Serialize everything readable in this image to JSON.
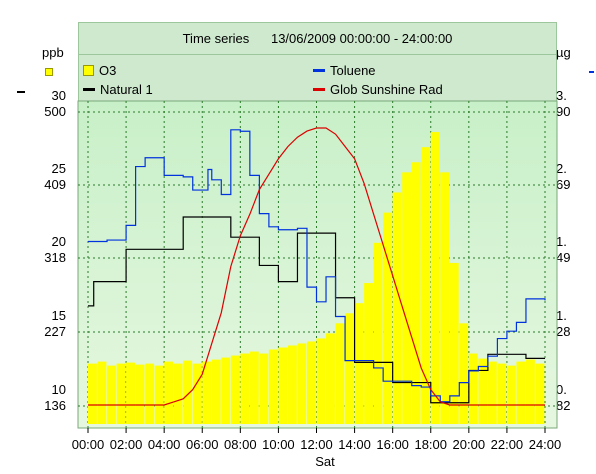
{
  "header": {
    "title": "Time series",
    "date_range": "13/06/2009 00:00:00 - 24:00:00"
  },
  "chart_data": {
    "type": "line",
    "x_axis": {
      "range_hours": [
        0,
        24
      ],
      "ticks": [
        "00:00",
        "02:00",
        "04:00",
        "06:00",
        "08:00",
        "10:00",
        "12:00",
        "14:00",
        "16:00",
        "18:00",
        "20:00",
        "22:00",
        "24:00"
      ],
      "day_label": "Sat"
    },
    "units": {
      "left": "ppb",
      "right": "µg"
    },
    "left_axes": [
      {
        "ticks": [
          "500",
          "409",
          "318",
          "227",
          "136"
        ],
        "values": [
          500,
          409,
          318,
          227,
          136
        ]
      },
      {
        "ticks": [
          "30",
          "25",
          "20",
          "15",
          "10"
        ],
        "values": [
          30,
          25,
          20,
          15,
          10
        ]
      }
    ],
    "right_axes": [
      {
        "ticks": [
          "90",
          "69",
          "49",
          "28",
          "82"
        ]
      },
      {
        "ticks": [
          "3.",
          "2.",
          "1.",
          "1.",
          "0."
        ]
      }
    ],
    "grid": true,
    "legend": [
      {
        "name": "O3",
        "color": "#e8e800",
        "marker": "square"
      },
      {
        "name": "Toluene",
        "color": "#0033dd",
        "marker": "dash"
      },
      {
        "name": "Natural 1",
        "color": "#000000",
        "marker": "dash"
      },
      {
        "name": "Glob Sunshine Rad",
        "color": "#dd0000",
        "marker": "dash"
      }
    ],
    "series": [
      {
        "name": "O3",
        "type": "bar",
        "color": "#ffff00",
        "x": [
          0,
          0.5,
          1,
          1.5,
          2,
          2.5,
          3,
          3.5,
          4,
          4.5,
          5,
          5.5,
          6,
          6.5,
          7,
          7.5,
          8,
          8.5,
          9,
          9.5,
          10,
          10.5,
          11,
          11.5,
          12,
          12.5,
          13,
          13.5,
          14,
          14.5,
          15,
          15.5,
          16,
          16.5,
          17,
          17.5,
          18,
          18.5,
          19,
          19.5,
          20,
          20.5,
          21,
          21.5,
          22,
          22.5,
          23,
          23.5
        ],
        "y": [
          60,
          62,
          58,
          60,
          61,
          59,
          60,
          58,
          62,
          60,
          63,
          60,
          62,
          64,
          66,
          68,
          70,
          72,
          70,
          74,
          76,
          78,
          80,
          82,
          85,
          90,
          100,
          110,
          120,
          140,
          180,
          210,
          230,
          250,
          260,
          275,
          290,
          250,
          160,
          100,
          70,
          65,
          62,
          60,
          58,
          62,
          64,
          60
        ]
      },
      {
        "name": "Toluene",
        "color": "#0033dd",
        "axis": "left-2",
        "x": [
          0,
          1,
          2,
          2.5,
          3,
          3.8,
          4,
          5,
          5.5,
          6,
          6.3,
          6.5,
          7,
          7.5,
          8,
          8.5,
          9,
          9.5,
          10,
          10.5,
          11,
          11.5,
          12,
          12.5,
          13,
          13.5,
          14,
          14.5,
          15,
          15.5,
          16,
          16.5,
          17,
          17.5,
          18,
          18.5,
          19,
          19.5,
          20,
          20.5,
          21,
          21.5,
          22,
          22.5,
          23,
          24
        ],
        "y": [
          20.1,
          20.2,
          21.2,
          25.2,
          25.8,
          25.8,
          24.6,
          24.5,
          23.6,
          23.6,
          25.0,
          24.3,
          23.3,
          27.7,
          27.6,
          24.6,
          22.0,
          21.1,
          20.9,
          20.9,
          21.0,
          17.0,
          16.0,
          17.7,
          15.0,
          12.0,
          12.0,
          12.0,
          11.5,
          10.6,
          10.6,
          10.6,
          10.3,
          10.2,
          9.6,
          9.2,
          9.6,
          10.5,
          11.3,
          11.6,
          12.3,
          13.5,
          14.0,
          14.6,
          16.2,
          16.1
        ]
      },
      {
        "name": "Natural 1",
        "color": "#000000",
        "x": [
          0,
          0.3,
          0.6,
          2,
          4,
          5,
          6,
          7.5,
          8.5,
          9,
          10,
          11,
          12,
          13,
          13.5,
          14,
          15,
          16,
          17,
          18,
          19,
          20,
          21,
          22,
          23,
          24
        ],
        "y": [
          260,
          290,
          290,
          330,
          330,
          370,
          370,
          345,
          345,
          310,
          290,
          350,
          350,
          270,
          270,
          190,
          190,
          165,
          165,
          140,
          140,
          180,
          200,
          200,
          195,
          195
        ]
      },
      {
        "name": "Glob Sunshine Rad",
        "color": "#dd0000",
        "axis": "right-1",
        "x": [
          0,
          3,
          4,
          4.5,
          5,
          5.5,
          6,
          6.5,
          7,
          7.5,
          8,
          8.5,
          9,
          9.5,
          10,
          10.5,
          11,
          11.5,
          12,
          12.5,
          13,
          13.5,
          14,
          14.5,
          15,
          15.5,
          16,
          16.5,
          17,
          17.5,
          18,
          18.5,
          19,
          20,
          21,
          22,
          24
        ],
        "y": [
          0,
          0,
          0,
          1,
          2,
          5,
          10,
          20,
          30,
          45,
          55,
          62,
          70,
          75,
          80,
          84,
          87,
          89,
          90,
          90,
          88,
          84,
          80,
          72,
          62,
          52,
          42,
          32,
          22,
          12,
          5,
          1,
          0,
          0,
          0,
          0,
          0
        ]
      }
    ]
  }
}
